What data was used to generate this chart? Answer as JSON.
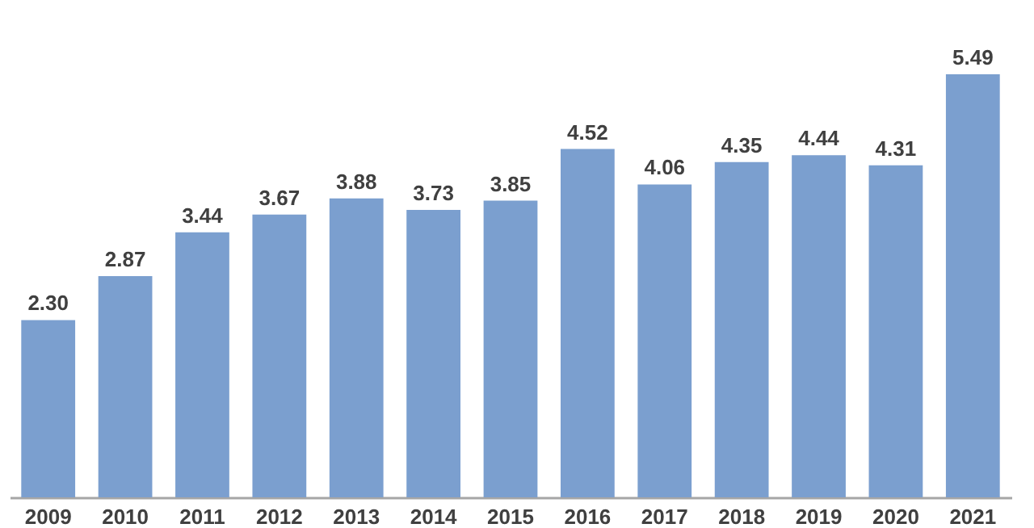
{
  "chart_data": {
    "type": "bar",
    "categories": [
      "2009",
      "2010",
      "2011",
      "2012",
      "2013",
      "2014",
      "2015",
      "2016",
      "2017",
      "2018",
      "2019",
      "2020",
      "2021"
    ],
    "values": [
      2.3,
      2.87,
      3.44,
      3.67,
      3.88,
      3.73,
      3.85,
      4.52,
      4.06,
      4.35,
      4.44,
      4.31,
      5.49
    ],
    "value_labels": [
      "2.30",
      "2.87",
      "3.44",
      "3.67",
      "3.88",
      "3.73",
      "3.85",
      "4.52",
      "4.06",
      "4.35",
      "4.44",
      "4.31",
      "5.49"
    ],
    "color": "#7b9fcf"
  }
}
